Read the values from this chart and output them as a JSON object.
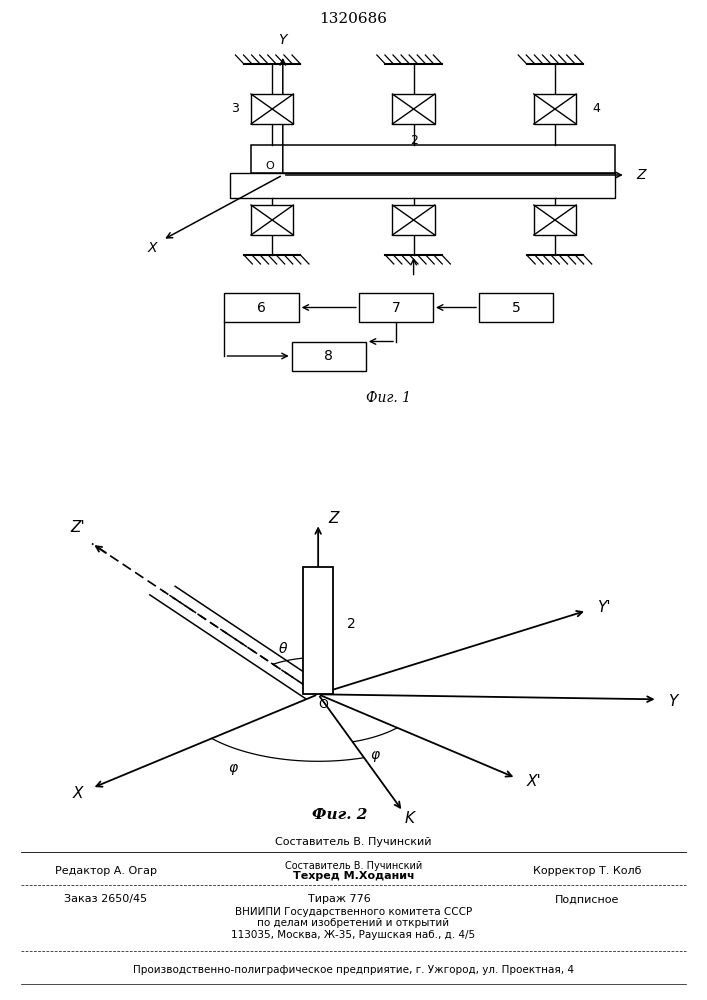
{
  "title": "1320686",
  "fig1_caption": "Фиг. 1",
  "fig2_caption": "Фиг. 2",
  "footer_sostavitel": "Составитель В. Пучинский",
  "footer_tehred": "Техред М.Ходанич",
  "footer_col1": "Редактор А. Огар",
  "footer_col3": "Корректор Т. Колб",
  "footer_order": "Заказ 2650/45",
  "footer_tirazh": "Тираж 776",
  "footer_podp": "Подписное",
  "footer_vniip": "ВНИИПИ Государственного комитета СССР",
  "footer_po_delam": "по делам изобретений и открытий",
  "footer_address": "113035, Москва, Ж-35, Раушская наб., д. 4/5",
  "footer_bottom": "Производственно-полиграфическое предприятие, г. Ужгород, ул. Проектная, 4"
}
